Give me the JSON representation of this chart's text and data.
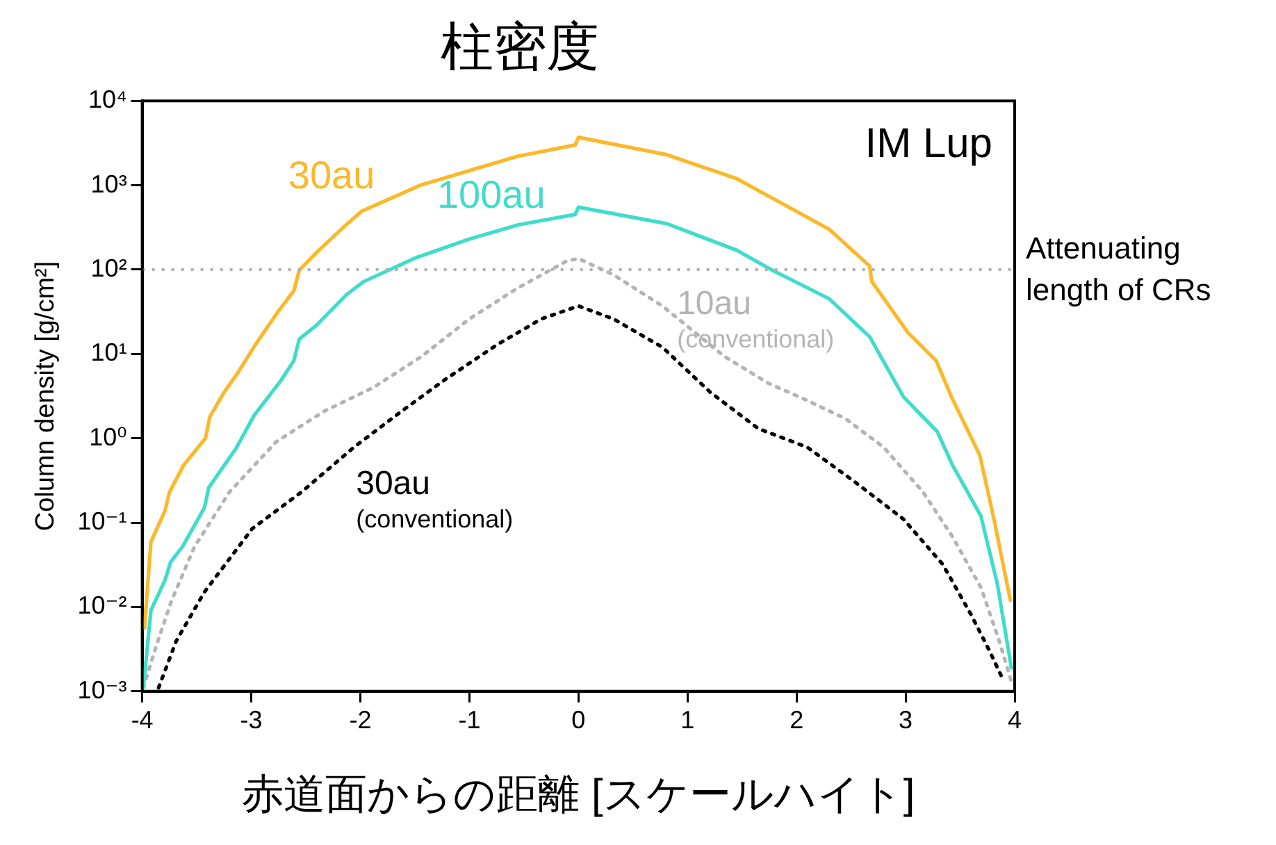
{
  "chart_data": {
    "type": "line",
    "title": "柱密度",
    "xlabel": "赤道面からの距離 [スケールハイト]",
    "ylabel": "Column density [g/cm²]",
    "xlim": [
      -4,
      4
    ],
    "xticks": [
      -4,
      -3,
      -2,
      -1,
      0,
      1,
      2,
      3,
      4
    ],
    "ylim": [
      0.001,
      10000
    ],
    "log": "y",
    "yticks": [
      {
        "value": 0.001,
        "label": "10⁻³"
      },
      {
        "value": 0.01,
        "label": "10⁻²"
      },
      {
        "value": 0.1,
        "label": "10⁻¹"
      },
      {
        "value": 1,
        "label": "10⁰"
      },
      {
        "value": 10,
        "label": "10¹"
      },
      {
        "value": 100,
        "label": "10²"
      },
      {
        "value": 1000,
        "label": "10³"
      },
      {
        "value": 10000,
        "label": "10⁴"
      }
    ],
    "grid": false,
    "legend": false,
    "marker": "none",
    "annotations": [
      "IM Lup"
    ],
    "ref_lines": [
      {
        "axis": "y",
        "value": 100,
        "label": "Attenuating length of CRs",
        "color": "#b0b0b0",
        "line_style": "dotted"
      }
    ],
    "series": [
      {
        "name": "30au",
        "color": "#fbb829",
        "line_style": "solid",
        "x": [
          -3.98,
          -3.92,
          -3.79,
          -3.75,
          -3.62,
          -3.42,
          -3.38,
          -3.25,
          -3.13,
          -2.96,
          -2.76,
          -2.61,
          -2.56,
          -2.4,
          -2.13,
          -1.99,
          -1.45,
          -0.56,
          -0.03,
          0,
          0.81,
          1.45,
          2.3,
          2.67,
          2.69,
          3.02,
          3.28,
          3.42,
          3.68,
          3.81,
          3.96
        ],
        "values": [
          0.0056,
          0.059,
          0.14,
          0.23,
          0.48,
          1.0,
          1.8,
          3.5,
          5.8,
          13,
          31,
          56,
          98,
          160,
          340,
          490,
          1000,
          2200,
          3000,
          3700,
          2300,
          1200,
          300,
          110,
          72,
          18,
          8.3,
          3.1,
          0.63,
          0.11,
          0.012
        ]
      },
      {
        "name": "100au",
        "color": "#40dccb",
        "line_style": "solid",
        "x": [
          -3.99,
          -3.92,
          -3.79,
          -3.74,
          -3.63,
          -3.43,
          -3.39,
          -3.14,
          -2.97,
          -2.73,
          -2.61,
          -2.56,
          -2.4,
          -2.13,
          -1.97,
          -1.48,
          -1.0,
          -0.55,
          -0.03,
          0,
          0.81,
          1.45,
          1.78,
          2.3,
          2.67,
          2.98,
          3.29,
          3.43,
          3.69,
          3.84,
          3.97
        ],
        "values": [
          0.0011,
          0.0091,
          0.021,
          0.034,
          0.052,
          0.15,
          0.26,
          0.76,
          1.9,
          4.8,
          8.3,
          15,
          22,
          50,
          72,
          140,
          230,
          340,
          450,
          550,
          350,
          170,
          98,
          45,
          16,
          3.1,
          1.2,
          0.48,
          0.12,
          0.019,
          0.0019
        ]
      },
      {
        "name": "10au (conventional)",
        "color": "#b4b4b4",
        "line_style": "dotted",
        "x": [
          -3.99,
          -3.87,
          -3.73,
          -3.52,
          -3.2,
          -2.77,
          -2.33,
          -1.88,
          -1.44,
          -1.0,
          -0.56,
          -0.11,
          0,
          0.32,
          0.77,
          1.34,
          1.74,
          2.1,
          2.45,
          2.8,
          3.16,
          3.43,
          3.69,
          3.86,
          3.97
        ],
        "values": [
          0.0011,
          0.0035,
          0.012,
          0.052,
          0.23,
          0.91,
          2.1,
          4.0,
          9.3,
          26,
          60,
          126,
          135,
          87,
          37,
          9.3,
          4.5,
          2.8,
          1.7,
          0.78,
          0.23,
          0.068,
          0.017,
          0.0039,
          0.0013
        ]
      },
      {
        "name": "30au (conventional)",
        "color": "#000000",
        "line_style": "dotted",
        "x": [
          -3.85,
          -3.69,
          -3.43,
          -2.99,
          -2.54,
          -2.06,
          -1.62,
          -1.22,
          -0.74,
          -0.34,
          0,
          0.32,
          0.77,
          1.21,
          1.65,
          2.1,
          2.54,
          2.98,
          3.34,
          3.6,
          3.77,
          3.89
        ],
        "values": [
          0.0011,
          0.0039,
          0.015,
          0.085,
          0.23,
          0.78,
          2.1,
          5.0,
          13,
          26,
          37,
          26,
          12,
          3.5,
          1.3,
          0.78,
          0.3,
          0.11,
          0.032,
          0.0081,
          0.003,
          0.0014
        ]
      }
    ]
  }
}
